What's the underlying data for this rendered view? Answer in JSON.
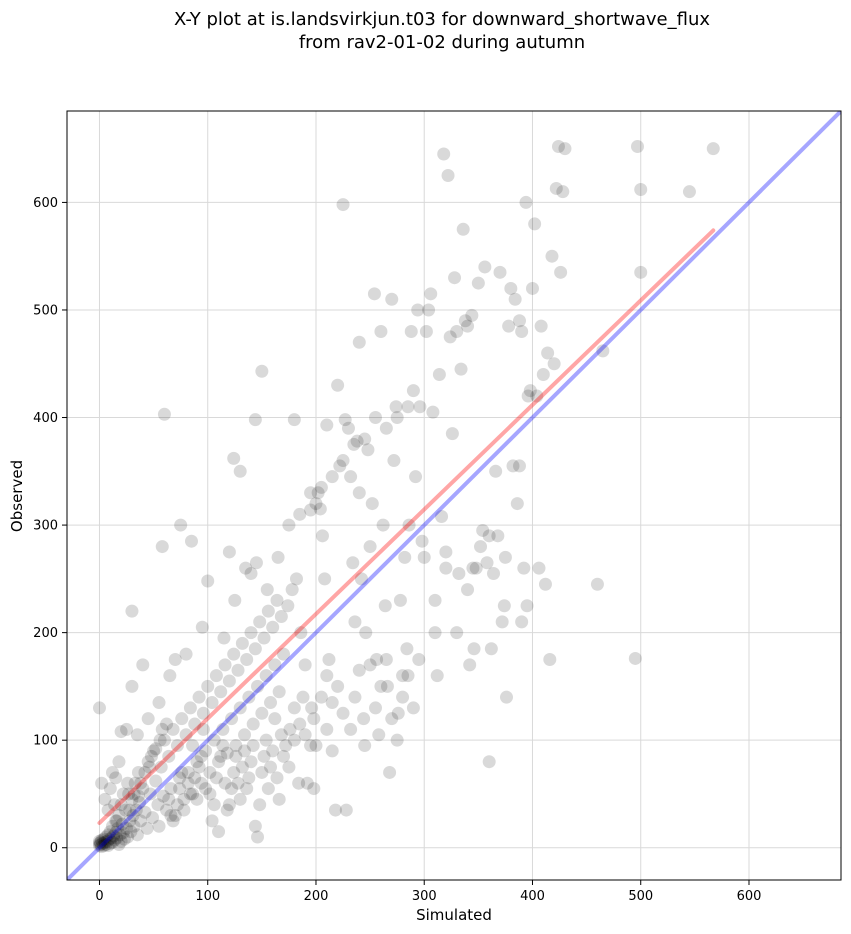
{
  "chart_data": {
    "type": "scatter",
    "title": [
      "X-Y plot at is.landsvirkjun.t03 for downward_shortwave_flux",
      "from rav2-01-02 during autumn"
    ],
    "xlabel": "Simulated",
    "ylabel": "Observed",
    "xlim": [
      -30,
      685
    ],
    "ylim": [
      -30,
      685
    ],
    "x_ticks": [
      0,
      100,
      200,
      300,
      400,
      500,
      600
    ],
    "y_ticks": [
      0,
      100,
      200,
      300,
      400,
      500,
      600
    ],
    "x_tick_labels": [
      "0",
      "100",
      "200",
      "300",
      "400",
      "500",
      "600"
    ],
    "y_tick_labels": [
      "0",
      "100",
      "200",
      "300",
      "400",
      "500",
      "600"
    ],
    "grid": true,
    "colors": {
      "points": "#000000",
      "fit_line": "#ff0000",
      "identity_line": "#0000ff"
    },
    "fit_line": {
      "x": [
        0,
        567
      ],
      "y": [
        23,
        574
      ]
    },
    "identity_line": {
      "x": [
        -30,
        685
      ],
      "y": [
        -30,
        685
      ]
    },
    "points": [
      [
        0,
        2
      ],
      [
        0,
        4
      ],
      [
        0,
        6
      ],
      [
        1,
        3
      ],
      [
        1,
        5
      ],
      [
        2,
        1
      ],
      [
        2,
        7
      ],
      [
        3,
        4
      ],
      [
        4,
        2
      ],
      [
        4,
        8
      ],
      [
        5,
        5
      ],
      [
        6,
        3
      ],
      [
        6,
        10
      ],
      [
        7,
        6
      ],
      [
        8,
        2
      ],
      [
        8,
        12
      ],
      [
        9,
        8
      ],
      [
        10,
        4
      ],
      [
        10,
        15
      ],
      [
        11,
        9
      ],
      [
        12,
        5
      ],
      [
        12,
        20
      ],
      [
        13,
        11
      ],
      [
        14,
        7
      ],
      [
        15,
        25
      ],
      [
        15,
        14
      ],
      [
        16,
        9
      ],
      [
        17,
        18
      ],
      [
        18,
        3
      ],
      [
        18,
        30
      ],
      [
        19,
        12
      ],
      [
        20,
        6
      ],
      [
        20,
        40
      ],
      [
        21,
        22
      ],
      [
        22,
        14
      ],
      [
        23,
        8
      ],
      [
        24,
        35
      ],
      [
        25,
        18
      ],
      [
        26,
        10
      ],
      [
        27,
        50
      ],
      [
        28,
        25
      ],
      [
        29,
        15
      ],
      [
        30,
        45
      ],
      [
        31,
        30
      ],
      [
        32,
        20
      ],
      [
        33,
        60
      ],
      [
        34,
        35
      ],
      [
        35,
        12
      ],
      [
        36,
        70
      ],
      [
        37,
        42
      ],
      [
        38,
        25
      ],
      [
        40,
        55
      ],
      [
        42,
        33
      ],
      [
        44,
        18
      ],
      [
        45,
        80
      ],
      [
        47,
        50
      ],
      [
        49,
        28
      ],
      [
        50,
        90
      ],
      [
        52,
        62
      ],
      [
        54,
        40
      ],
      [
        55,
        20
      ],
      [
        57,
        75
      ],
      [
        59,
        48
      ],
      [
        60,
        100
      ],
      [
        62,
        35
      ],
      [
        64,
        85
      ],
      [
        66,
        55
      ],
      [
        68,
        110
      ],
      [
        70,
        30
      ],
      [
        72,
        95
      ],
      [
        74,
        65
      ],
      [
        76,
        120
      ],
      [
        78,
        45
      ],
      [
        80,
        105
      ],
      [
        82,
        70
      ],
      [
        84,
        130
      ],
      [
        86,
        50
      ],
      [
        88,
        115
      ],
      [
        90,
        80
      ],
      [
        92,
        140
      ],
      [
        94,
        60
      ],
      [
        96,
        125
      ],
      [
        98,
        90
      ],
      [
        100,
        150
      ],
      [
        102,
        70
      ],
      [
        104,
        135
      ],
      [
        106,
        100
      ],
      [
        108,
        160
      ],
      [
        110,
        80
      ],
      [
        112,
        145
      ],
      [
        114,
        110
      ],
      [
        116,
        170
      ],
      [
        118,
        88
      ],
      [
        120,
        155
      ],
      [
        122,
        120
      ],
      [
        124,
        180
      ],
      [
        126,
        95
      ],
      [
        128,
        165
      ],
      [
        130,
        130
      ],
      [
        132,
        190
      ],
      [
        134,
        105
      ],
      [
        136,
        175
      ],
      [
        138,
        140
      ],
      [
        140,
        200
      ],
      [
        142,
        115
      ],
      [
        144,
        185
      ],
      [
        146,
        150
      ],
      [
        148,
        210
      ],
      [
        150,
        125
      ],
      [
        152,
        195
      ],
      [
        154,
        160
      ],
      [
        156,
        220
      ],
      [
        158,
        135
      ],
      [
        160,
        205
      ],
      [
        162,
        170
      ],
      [
        164,
        230
      ],
      [
        166,
        145
      ],
      [
        168,
        215
      ],
      [
        170,
        180
      ],
      [
        172,
        95
      ],
      [
        174,
        225
      ],
      [
        176,
        110
      ],
      [
        178,
        240
      ],
      [
        180,
        130
      ],
      [
        182,
        250
      ],
      [
        184,
        60
      ],
      [
        186,
        200
      ],
      [
        188,
        140
      ],
      [
        190,
        170
      ],
      [
        195,
        95
      ],
      [
        198,
        120
      ],
      [
        200,
        320
      ],
      [
        202,
        330
      ],
      [
        204,
        315
      ],
      [
        206,
        290
      ],
      [
        208,
        250
      ],
      [
        210,
        160
      ],
      [
        212,
        175
      ],
      [
        215,
        135
      ],
      [
        218,
        35
      ],
      [
        220,
        430
      ],
      [
        222,
        355
      ],
      [
        225,
        598
      ],
      [
        227,
        398
      ],
      [
        230,
        390
      ],
      [
        232,
        345
      ],
      [
        234,
        265
      ],
      [
        236,
        210
      ],
      [
        238,
        378
      ],
      [
        240,
        470
      ],
      [
        242,
        250
      ],
      [
        244,
        120
      ],
      [
        246,
        200
      ],
      [
        248,
        370
      ],
      [
        250,
        280
      ],
      [
        252,
        320
      ],
      [
        254,
        515
      ],
      [
        256,
        175
      ],
      [
        258,
        105
      ],
      [
        260,
        480
      ],
      [
        262,
        300
      ],
      [
        264,
        225
      ],
      [
        266,
        150
      ],
      [
        268,
        70
      ],
      [
        270,
        510
      ],
      [
        272,
        360
      ],
      [
        274,
        410
      ],
      [
        276,
        125
      ],
      [
        278,
        230
      ],
      [
        280,
        160
      ],
      [
        282,
        270
      ],
      [
        284,
        185
      ],
      [
        286,
        300
      ],
      [
        288,
        480
      ],
      [
        290,
        425
      ],
      [
        292,
        345
      ],
      [
        294,
        500
      ],
      [
        296,
        410
      ],
      [
        298,
        285
      ],
      [
        300,
        270
      ],
      [
        302,
        480
      ],
      [
        304,
        500
      ],
      [
        306,
        515
      ],
      [
        308,
        405
      ],
      [
        310,
        200
      ],
      [
        312,
        160
      ],
      [
        314,
        440
      ],
      [
        316,
        308
      ],
      [
        318,
        645
      ],
      [
        320,
        260
      ],
      [
        322,
        625
      ],
      [
        324,
        475
      ],
      [
        326,
        385
      ],
      [
        328,
        530
      ],
      [
        330,
        480
      ],
      [
        332,
        255
      ],
      [
        334,
        445
      ],
      [
        336,
        575
      ],
      [
        338,
        490
      ],
      [
        340,
        485
      ],
      [
        342,
        170
      ],
      [
        344,
        495
      ],
      [
        346,
        185
      ],
      [
        348,
        260
      ],
      [
        350,
        525
      ],
      [
        352,
        280
      ],
      [
        354,
        295
      ],
      [
        356,
        540
      ],
      [
        358,
        265
      ],
      [
        360,
        80
      ],
      [
        362,
        185
      ],
      [
        364,
        255
      ],
      [
        366,
        350
      ],
      [
        368,
        290
      ],
      [
        370,
        535
      ],
      [
        372,
        210
      ],
      [
        374,
        225
      ],
      [
        376,
        140
      ],
      [
        378,
        485
      ],
      [
        380,
        520
      ],
      [
        382,
        355
      ],
      [
        384,
        510
      ],
      [
        386,
        320
      ],
      [
        388,
        490
      ],
      [
        390,
        480
      ],
      [
        392,
        260
      ],
      [
        394,
        600
      ],
      [
        396,
        420
      ],
      [
        398,
        425
      ],
      [
        400,
        520
      ],
      [
        402,
        580
      ],
      [
        404,
        420
      ],
      [
        406,
        260
      ],
      [
        408,
        485
      ],
      [
        410,
        440
      ],
      [
        412,
        245
      ],
      [
        414,
        460
      ],
      [
        416,
        175
      ],
      [
        418,
        550
      ],
      [
        420,
        450
      ],
      [
        422,
        613
      ],
      [
        424,
        652
      ],
      [
        426,
        535
      ],
      [
        428,
        610
      ],
      [
        430,
        650
      ],
      [
        60,
        403
      ],
      [
        150,
        443
      ],
      [
        30,
        220
      ],
      [
        58,
        280
      ],
      [
        130,
        350
      ],
      [
        124,
        362
      ],
      [
        100,
        248
      ],
      [
        85,
        285
      ],
      [
        75,
        300
      ],
      [
        120,
        275
      ],
      [
        140,
        255
      ],
      [
        144,
        398
      ],
      [
        180,
        398
      ],
      [
        210,
        393
      ],
      [
        195,
        314
      ],
      [
        240,
        330
      ],
      [
        40,
        170
      ],
      [
        20,
        108
      ],
      [
        25,
        110
      ],
      [
        30,
        150
      ],
      [
        15,
        65
      ],
      [
        18,
        80
      ],
      [
        35,
        105
      ],
      [
        45,
        120
      ],
      [
        55,
        135
      ],
      [
        65,
        160
      ],
      [
        70,
        175
      ],
      [
        80,
        180
      ],
      [
        95,
        205
      ],
      [
        115,
        195
      ],
      [
        125,
        230
      ],
      [
        135,
        260
      ],
      [
        145,
        265
      ],
      [
        155,
        240
      ],
      [
        165,
        270
      ],
      [
        175,
        300
      ],
      [
        185,
        310
      ],
      [
        195,
        330
      ],
      [
        205,
        335
      ],
      [
        215,
        345
      ],
      [
        225,
        360
      ],
      [
        235,
        375
      ],
      [
        245,
        380
      ],
      [
        255,
        400
      ],
      [
        265,
        390
      ],
      [
        275,
        400
      ],
      [
        285,
        410
      ],
      [
        0,
        130
      ],
      [
        2,
        60
      ],
      [
        5,
        45
      ],
      [
        8,
        35
      ],
      [
        10,
        55
      ],
      [
        12,
        70
      ],
      [
        14,
        40
      ],
      [
        16,
        25
      ],
      [
        22,
        50
      ],
      [
        26,
        60
      ],
      [
        28,
        35
      ],
      [
        32,
        50
      ],
      [
        36,
        48
      ],
      [
        38,
        60
      ],
      [
        42,
        70
      ],
      [
        46,
        75
      ],
      [
        48,
        85
      ],
      [
        52,
        92
      ],
      [
        56,
        100
      ],
      [
        58,
        110
      ],
      [
        62,
        115
      ],
      [
        64,
        45
      ],
      [
        66,
        30
      ],
      [
        68,
        25
      ],
      [
        72,
        40
      ],
      [
        74,
        55
      ],
      [
        76,
        70
      ],
      [
        78,
        35
      ],
      [
        82,
        60
      ],
      [
        84,
        50
      ],
      [
        86,
        95
      ],
      [
        88,
        65
      ],
      [
        90,
        45
      ],
      [
        92,
        75
      ],
      [
        94,
        85
      ],
      [
        96,
        110
      ],
      [
        98,
        55
      ],
      [
        102,
        50
      ],
      [
        104,
        25
      ],
      [
        106,
        40
      ],
      [
        108,
        65
      ],
      [
        110,
        15
      ],
      [
        112,
        85
      ],
      [
        114,
        95
      ],
      [
        116,
        60
      ],
      [
        118,
        35
      ],
      [
        120,
        40
      ],
      [
        122,
        55
      ],
      [
        124,
        70
      ],
      [
        126,
        85
      ],
      [
        128,
        60
      ],
      [
        130,
        45
      ],
      [
        132,
        75
      ],
      [
        134,
        90
      ],
      [
        136,
        55
      ],
      [
        138,
        65
      ],
      [
        140,
        80
      ],
      [
        142,
        95
      ],
      [
        144,
        20
      ],
      [
        146,
        10
      ],
      [
        148,
        40
      ],
      [
        150,
        70
      ],
      [
        152,
        85
      ],
      [
        154,
        100
      ],
      [
        156,
        55
      ],
      [
        158,
        75
      ],
      [
        160,
        90
      ],
      [
        162,
        120
      ],
      [
        164,
        65
      ],
      [
        166,
        45
      ],
      [
        168,
        105
      ],
      [
        170,
        85
      ],
      [
        175,
        75
      ],
      [
        180,
        100
      ],
      [
        185,
        115
      ],
      [
        190,
        105
      ],
      [
        192,
        60
      ],
      [
        196,
        130
      ],
      [
        198,
        55
      ],
      [
        200,
        95
      ],
      [
        205,
        140
      ],
      [
        210,
        110
      ],
      [
        215,
        90
      ],
      [
        220,
        150
      ],
      [
        225,
        125
      ],
      [
        228,
        35
      ],
      [
        232,
        110
      ],
      [
        236,
        140
      ],
      [
        240,
        165
      ],
      [
        245,
        95
      ],
      [
        250,
        170
      ],
      [
        255,
        130
      ],
      [
        260,
        150
      ],
      [
        265,
        175
      ],
      [
        270,
        120
      ],
      [
        275,
        100
      ],
      [
        280,
        140
      ],
      [
        285,
        160
      ],
      [
        290,
        130
      ],
      [
        295,
        175
      ],
      [
        310,
        230
      ],
      [
        320,
        275
      ],
      [
        330,
        200
      ],
      [
        340,
        240
      ],
      [
        345,
        260
      ],
      [
        360,
        290
      ],
      [
        375,
        270
      ],
      [
        388,
        355
      ],
      [
        390,
        210
      ],
      [
        395,
        225
      ],
      [
        460,
        245
      ],
      [
        465,
        462
      ],
      [
        495,
        176
      ],
      [
        497,
        652
      ],
      [
        500,
        612
      ],
      [
        500,
        535
      ],
      [
        545,
        610
      ],
      [
        567,
        650
      ]
    ]
  }
}
